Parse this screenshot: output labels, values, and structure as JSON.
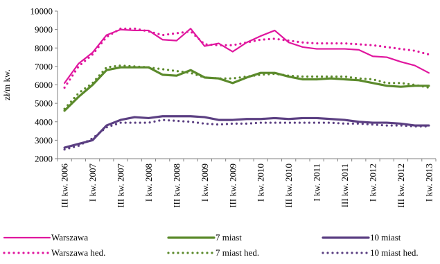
{
  "chart_data": {
    "type": "line",
    "title": "",
    "xlabel": "",
    "ylabel": "zł/m kw.",
    "ylim": [
      2000,
      10000
    ],
    "yticks": [
      2000,
      3000,
      4000,
      5000,
      6000,
      7000,
      8000,
      9000,
      10000
    ],
    "grid": false,
    "legend_position": "bottom",
    "categories": [
      "III kw. 2006",
      "IV kw. 2006",
      "I kw. 2007",
      "II kw. 2007",
      "III kw. 2007",
      "IV kw. 2007",
      "I kw. 2008",
      "II kw. 2008",
      "III kw. 2008",
      "IV kw. 2008",
      "I kw. 2009",
      "II kw. 2009",
      "III kw. 2009",
      "IV kw. 2009",
      "I kw. 2010",
      "II kw. 2010",
      "III kw. 2010",
      "IV kw. 2010",
      "I kw. 2011",
      "II kw. 2011",
      "III kw. 2011",
      "IV kw. 2011",
      "I kw. 2012",
      "II kw. 2012",
      "III kw. 2012",
      "IV kw. 2012",
      "I kw. 2013"
    ],
    "tick_labels": [
      "III kw. 2006",
      "I kw. 2007",
      "III kw. 2007",
      "I kw. 2008",
      "III kw. 2008",
      "I kw. 2009",
      "III kw. 2009",
      "I kw. 2010",
      "III kw. 2010",
      "I kw. 2011",
      "III kw. 2011",
      "I kw. 2012",
      "III kw. 2012",
      "I kw. 2013"
    ],
    "series": [
      {
        "name": "Warszawa",
        "style": "solid",
        "color": "#e0169e",
        "values": [
          6100,
          7150,
          7750,
          8700,
          9000,
          8950,
          8950,
          8450,
          8400,
          9050,
          8100,
          8250,
          7800,
          8300,
          8650,
          8950,
          8300,
          8050,
          7950,
          7950,
          7950,
          7900,
          7550,
          7500,
          7250,
          7050,
          6650
        ]
      },
      {
        "name": "7 miast",
        "style": "solid",
        "color": "#5b8a2b",
        "values": [
          4600,
          5350,
          6000,
          6800,
          6950,
          6950,
          6950,
          6550,
          6500,
          6800,
          6400,
          6350,
          6100,
          6400,
          6650,
          6650,
          6450,
          6300,
          6300,
          6350,
          6300,
          6250,
          6100,
          5950,
          5900,
          5950,
          5950
        ]
      },
      {
        "name": "10 miast",
        "style": "solid",
        "color": "#5b3f82",
        "values": [
          2600,
          2800,
          3000,
          3800,
          4100,
          4250,
          4200,
          4300,
          4300,
          4300,
          4250,
          4100,
          4100,
          4150,
          4150,
          4200,
          4150,
          4200,
          4200,
          4150,
          4100,
          4000,
          3950,
          3950,
          3900,
          3800,
          3800
        ]
      },
      {
        "name": "Warszawa hed.",
        "style": "dotted",
        "color": "#e0169e",
        "values": [
          5850,
          7000,
          7650,
          8600,
          9050,
          9050,
          8900,
          8700,
          8800,
          8900,
          8200,
          8150,
          8150,
          8300,
          8450,
          8500,
          8400,
          8300,
          8250,
          8250,
          8250,
          8200,
          8150,
          8050,
          7950,
          7850,
          7650
        ]
      },
      {
        "name": "7 miast hed.",
        "style": "dotted",
        "color": "#5b8a2b",
        "values": [
          4700,
          5550,
          6100,
          6950,
          7050,
          7000,
          6950,
          6850,
          6750,
          6650,
          6400,
          6350,
          6350,
          6450,
          6550,
          6600,
          6500,
          6450,
          6450,
          6450,
          6450,
          6350,
          6300,
          6100,
          6100,
          6000,
          5850
        ]
      },
      {
        "name": "10 miast hed.",
        "style": "dotted",
        "color": "#5b3f82",
        "values": [
          2500,
          2700,
          3100,
          3700,
          3950,
          3950,
          3950,
          4100,
          4050,
          4000,
          3900,
          3850,
          3900,
          3900,
          3950,
          3950,
          3950,
          3950,
          3950,
          3950,
          3900,
          3900,
          3850,
          3800,
          3800,
          3750,
          3750
        ]
      }
    ]
  }
}
